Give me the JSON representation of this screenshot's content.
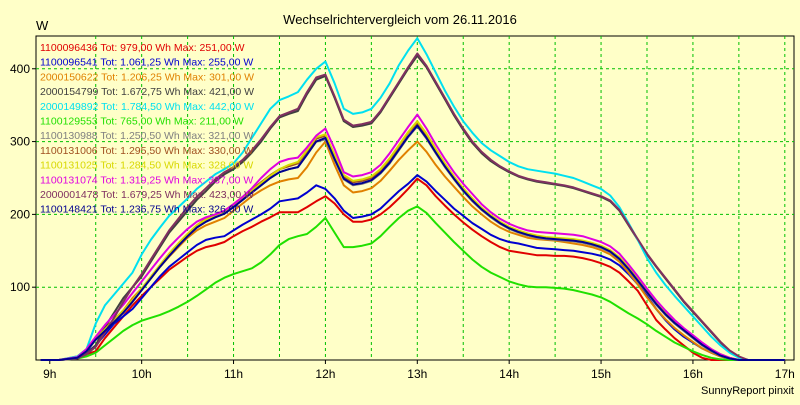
{
  "chart_data": {
    "type": "line",
    "title": "Wechselrichtervergleich vom 26.11.2016",
    "ylabel": "W",
    "xlabel": "",
    "footer": "SunnyReport pinxit",
    "ylim": [
      0,
      445
    ],
    "xlim": [
      8.85,
      17.1
    ],
    "y_ticks": [
      100,
      200,
      300,
      400
    ],
    "x_ticks": [
      {
        "value": 9,
        "label": "9h"
      },
      {
        "value": 10,
        "label": "10h"
      },
      {
        "value": 11,
        "label": "11h"
      },
      {
        "value": 12,
        "label": "12h"
      },
      {
        "value": 13,
        "label": "13h"
      },
      {
        "value": 14,
        "label": "14h"
      },
      {
        "value": 15,
        "label": "15h"
      },
      {
        "value": 16,
        "label": "16h"
      },
      {
        "value": 17,
        "label": "17h"
      }
    ],
    "x_grid": [
      9.5,
      10,
      10.5,
      11,
      11.5,
      12,
      12.5,
      13,
      13.5,
      14,
      14.5,
      15,
      15.5,
      16,
      16.5,
      17
    ],
    "y_grid": [
      100,
      200,
      300,
      400
    ],
    "grid": true,
    "legend_position": "top-left",
    "x": [
      8.9,
      9.1,
      9.3,
      9.4,
      9.5,
      9.6,
      9.7,
      9.8,
      9.9,
      10.0,
      10.1,
      10.2,
      10.3,
      10.4,
      10.5,
      10.6,
      10.7,
      10.8,
      10.9,
      11.0,
      11.1,
      11.2,
      11.3,
      11.4,
      11.5,
      11.6,
      11.7,
      11.8,
      11.9,
      12.0,
      12.1,
      12.2,
      12.3,
      12.4,
      12.5,
      12.6,
      12.7,
      12.8,
      12.9,
      13.0,
      13.1,
      13.2,
      13.3,
      13.4,
      13.5,
      13.6,
      13.7,
      13.8,
      13.9,
      14.0,
      14.1,
      14.2,
      14.3,
      14.4,
      14.5,
      14.6,
      14.7,
      14.8,
      14.9,
      15.0,
      15.1,
      15.2,
      15.3,
      15.4,
      15.5,
      15.6,
      15.7,
      15.8,
      15.9,
      16.0,
      16.1,
      16.2,
      16.3,
      16.4,
      16.5,
      16.6,
      16.7,
      16.8,
      16.9,
      17.0
    ],
    "series": [
      {
        "name": "1100096436 Tot: 979,00 Wh Max: 251,00 W",
        "color": "#e00000",
        "values": [
          0,
          0,
          3,
          8,
          12,
          30,
          45,
          60,
          75,
          88,
          100,
          112,
          124,
          133,
          142,
          150,
          155,
          158,
          162,
          170,
          177,
          183,
          190,
          196,
          203,
          203,
          203,
          210,
          218,
          225,
          215,
          200,
          190,
          190,
          193,
          200,
          210,
          222,
          235,
          249,
          240,
          225,
          212,
          200,
          189,
          179,
          170,
          162,
          155,
          150,
          148,
          146,
          144,
          144,
          143,
          143,
          142,
          140,
          137,
          133,
          128,
          120,
          108,
          95,
          75,
          55,
          42,
          30,
          20,
          10,
          3,
          0,
          0,
          0,
          0,
          0,
          0,
          0,
          0,
          0
        ]
      },
      {
        "name": "1100096541 Tot: 1.061,25 Wh Max: 255,00 W",
        "color": "#0000d0",
        "values": [
          0,
          0,
          2,
          10,
          20,
          35,
          50,
          60,
          70,
          85,
          100,
          115,
          128,
          138,
          148,
          158,
          165,
          168,
          170,
          178,
          186,
          193,
          200,
          208,
          218,
          220,
          222,
          230,
          240,
          235,
          222,
          205,
          195,
          197,
          200,
          208,
          220,
          232,
          242,
          254,
          245,
          232,
          220,
          208,
          198,
          188,
          180,
          172,
          166,
          162,
          160,
          157,
          154,
          153,
          152,
          151,
          150,
          148,
          146,
          143,
          138,
          130,
          118,
          104,
          88,
          70,
          55,
          42,
          32,
          24,
          16,
          10,
          5,
          2,
          0,
          0,
          0,
          0,
          0,
          0
        ]
      },
      {
        "name": "2000150622 Tot: 1.206,25 Wh Max: 301,00 W",
        "color": "#e08000",
        "values": [
          0,
          0,
          5,
          15,
          30,
          45,
          55,
          68,
          85,
          98,
          112,
          128,
          142,
          155,
          168,
          178,
          185,
          190,
          195,
          205,
          215,
          225,
          233,
          240,
          245,
          248,
          250,
          265,
          285,
          300,
          268,
          240,
          230,
          232,
          236,
          246,
          260,
          275,
          288,
          300,
          286,
          268,
          252,
          238,
          224,
          211,
          200,
          190,
          182,
          176,
          172,
          168,
          166,
          165,
          164,
          162,
          160,
          158,
          155,
          151,
          145,
          135,
          120,
          104,
          86,
          70,
          56,
          44,
          34,
          25,
          16,
          10,
          5,
          2,
          0,
          0,
          0,
          0,
          0,
          0
        ]
      },
      {
        "name": "2000154799 Tot: 1.672,75 Wh Max: 421,00 W",
        "color": "#404040",
        "values": [
          0,
          0,
          2,
          8,
          20,
          45,
          65,
          85,
          100,
          115,
          135,
          155,
          175,
          190,
          205,
          220,
          232,
          245,
          255,
          262,
          272,
          285,
          300,
          318,
          333,
          338,
          342,
          365,
          385,
          390,
          360,
          328,
          320,
          322,
          325,
          340,
          360,
          380,
          400,
          418,
          402,
          380,
          358,
          336,
          316,
          298,
          284,
          273,
          265,
          258,
          252,
          248,
          245,
          243,
          241,
          239,
          236,
          232,
          228,
          224,
          218,
          205,
          185,
          165,
          145,
          128,
          112,
          96,
          80,
          66,
          52,
          38,
          24,
          12,
          4,
          0,
          0,
          0,
          0,
          0
        ]
      },
      {
        "name": "2000149892 Tot: 1.784,50 Wh Max: 442,00 W",
        "color": "#00e0f0",
        "values": [
          0,
          0,
          5,
          15,
          50,
          75,
          90,
          105,
          120,
          145,
          165,
          182,
          198,
          210,
          222,
          235,
          245,
          255,
          262,
          270,
          285,
          305,
          325,
          345,
          357,
          362,
          368,
          385,
          400,
          410,
          380,
          345,
          338,
          340,
          345,
          360,
          380,
          405,
          425,
          442,
          420,
          395,
          370,
          348,
          328,
          312,
          298,
          288,
          280,
          272,
          266,
          262,
          260,
          258,
          256,
          253,
          250,
          245,
          240,
          235,
          226,
          210,
          188,
          165,
          140,
          120,
          103,
          88,
          74,
          60,
          46,
          32,
          20,
          10,
          3,
          0,
          0,
          0,
          0,
          0
        ]
      },
      {
        "name": "1100129553 Tot: 765,00 Wh Max: 211,00 W",
        "color": "#20e000",
        "values": [
          0,
          0,
          2,
          5,
          10,
          20,
          30,
          40,
          48,
          54,
          58,
          62,
          67,
          73,
          80,
          88,
          97,
          106,
          113,
          118,
          122,
          126,
          134,
          145,
          158,
          166,
          170,
          173,
          183,
          195,
          175,
          155,
          155,
          157,
          160,
          170,
          183,
          195,
          205,
          211,
          202,
          188,
          175,
          162,
          150,
          138,
          128,
          120,
          114,
          108,
          104,
          101,
          100,
          100,
          99,
          98,
          96,
          93,
          90,
          86,
          80,
          72,
          64,
          57,
          49,
          40,
          32,
          24,
          18,
          12,
          7,
          3,
          1,
          0,
          0,
          0,
          0,
          0,
          0,
          0
        ]
      },
      {
        "name": "1100130988 Tot: 1.250,50 Wh Max: 321,00 W",
        "color": "#808080",
        "values": [
          0,
          0,
          3,
          12,
          28,
          40,
          52,
          65,
          80,
          96,
          112,
          128,
          143,
          157,
          170,
          182,
          190,
          196,
          201,
          210,
          220,
          230,
          240,
          250,
          258,
          262,
          265,
          282,
          300,
          303,
          275,
          248,
          240,
          242,
          246,
          256,
          270,
          288,
          306,
          321,
          304,
          284,
          265,
          248,
          232,
          218,
          206,
          196,
          187,
          180,
          175,
          171,
          168,
          166,
          165,
          164,
          163,
          161,
          158,
          154,
          148,
          138,
          124,
          108,
          92,
          76,
          62,
          50,
          40,
          30,
          20,
          12,
          6,
          2,
          0,
          0,
          0,
          0,
          0,
          0
        ]
      },
      {
        "name": "1100131006 Tot: 1.295,50 Wh Max: 330,00 W",
        "color": "#a05020",
        "values": [
          0,
          0,
          3,
          12,
          28,
          42,
          55,
          68,
          82,
          98,
          114,
          130,
          146,
          160,
          173,
          185,
          194,
          200,
          205,
          214,
          224,
          234,
          244,
          254,
          262,
          266,
          270,
          286,
          304,
          308,
          280,
          252,
          244,
          246,
          250,
          260,
          275,
          294,
          312,
          325,
          308,
          288,
          269,
          251,
          235,
          221,
          208,
          198,
          189,
          182,
          177,
          173,
          170,
          168,
          167,
          166,
          165,
          163,
          160,
          156,
          150,
          140,
          126,
          110,
          94,
          78,
          64,
          52,
          42,
          32,
          22,
          14,
          7,
          3,
          0,
          0,
          0,
          0,
          0,
          0
        ]
      },
      {
        "name": "1100131025 Tot: 1.284,50 Wh Max: 328,00 W",
        "color": "#d8d800",
        "values": [
          0,
          0,
          3,
          12,
          28,
          42,
          55,
          68,
          82,
          98,
          114,
          130,
          146,
          160,
          173,
          185,
          193,
          199,
          204,
          213,
          223,
          233,
          243,
          253,
          262,
          268,
          272,
          288,
          306,
          310,
          282,
          254,
          246,
          248,
          252,
          262,
          277,
          295,
          313,
          328,
          311,
          290,
          270,
          252,
          236,
          222,
          209,
          199,
          190,
          183,
          178,
          174,
          171,
          169,
          168,
          167,
          166,
          164,
          161,
          157,
          151,
          141,
          127,
          111,
          95,
          79,
          65,
          53,
          43,
          33,
          23,
          15,
          8,
          3,
          0,
          0,
          0,
          0,
          0,
          0
        ]
      },
      {
        "name": "1100131074 Tot: 1.319,25 Wh Max: 337,00 W",
        "color": "#e000e0",
        "values": [
          0,
          0,
          4,
          15,
          32,
          48,
          62,
          76,
          92,
          108,
          124,
          140,
          155,
          168,
          180,
          190,
          196,
          200,
          205,
          214,
          224,
          236,
          250,
          262,
          272,
          276,
          278,
          292,
          308,
          318,
          290,
          258,
          252,
          254,
          258,
          268,
          284,
          302,
          320,
          337,
          318,
          296,
          276,
          258,
          242,
          228,
          214,
          203,
          194,
          187,
          182,
          178,
          176,
          175,
          174,
          173,
          172,
          170,
          166,
          162,
          156,
          146,
          131,
          115,
          98,
          82,
          68,
          55,
          44,
          34,
          24,
          15,
          8,
          3,
          0,
          0,
          0,
          0,
          0,
          0
        ]
      },
      {
        "name": "2000001478 Tot: 1.679,25 Wh Max: 423,00 W",
        "color": "#803060",
        "values": [
          0,
          0,
          2,
          8,
          18,
          38,
          58,
          80,
          100,
          118,
          138,
          158,
          178,
          194,
          210,
          224,
          236,
          248,
          258,
          265,
          275,
          288,
          303,
          320,
          335,
          340,
          345,
          368,
          388,
          392,
          362,
          330,
          322,
          324,
          327,
          342,
          362,
          382,
          402,
          421,
          404,
          382,
          360,
          338,
          318,
          300,
          286,
          275,
          266,
          259,
          253,
          249,
          246,
          244,
          242,
          240,
          237,
          233,
          229,
          225,
          219,
          206,
          186,
          166,
          146,
          129,
          113,
          97,
          81,
          67,
          53,
          39,
          25,
          13,
          5,
          0,
          0,
          0,
          0,
          0
        ]
      },
      {
        "name": "1100148421 Tot: 1.236,75 Wh Max: 326,00 W",
        "color": "#000090",
        "values": [
          0,
          0,
          3,
          12,
          28,
          40,
          52,
          65,
          80,
          96,
          112,
          128,
          143,
          157,
          170,
          182,
          190,
          196,
          201,
          210,
          220,
          230,
          240,
          250,
          258,
          262,
          265,
          282,
          300,
          305,
          276,
          249,
          241,
          243,
          247,
          257,
          271,
          289,
          307,
          322,
          305,
          285,
          266,
          249,
          233,
          219,
          207,
          197,
          188,
          181,
          176,
          172,
          169,
          167,
          166,
          165,
          164,
          162,
          159,
          155,
          149,
          139,
          125,
          109,
          93,
          77,
          63,
          51,
          41,
          31,
          21,
          13,
          6,
          2,
          0,
          0,
          0,
          0,
          0,
          0
        ]
      }
    ]
  }
}
